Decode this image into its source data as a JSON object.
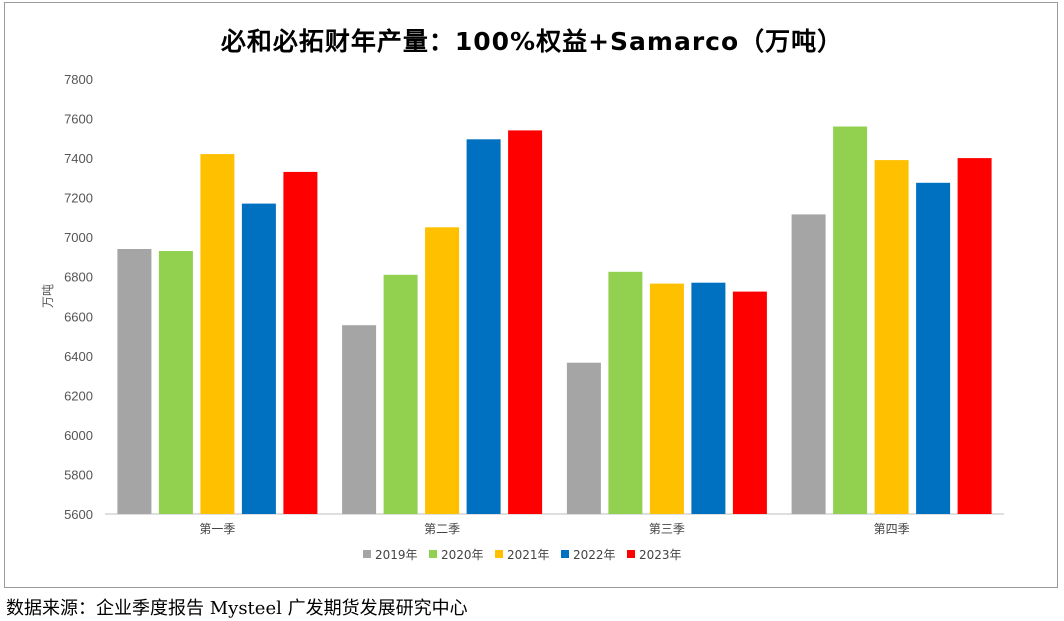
{
  "chart_data": {
    "type": "bar",
    "title": "必和必拓财年产量：100%权益+Samarco（万吨）",
    "ylabel": "万吨",
    "xlabel": "",
    "ylim": [
      5600,
      7800
    ],
    "ytick_step": 200,
    "grid": false,
    "legend_position": "bottom",
    "categories": [
      "第一季",
      "第二季",
      "第三季",
      "第四季"
    ],
    "series": [
      {
        "name": "2019年",
        "color": "#A5A5A5",
        "values": [
          6940,
          6555,
          6365,
          7115
        ]
      },
      {
        "name": "2020年",
        "color": "#92D050",
        "values": [
          6930,
          6810,
          6825,
          7560
        ]
      },
      {
        "name": "2021年",
        "color": "#FFC000",
        "values": [
          7420,
          7050,
          6765,
          7390
        ]
      },
      {
        "name": "2022年",
        "color": "#0070C0",
        "values": [
          7170,
          7495,
          6770,
          7275
        ]
      },
      {
        "name": "2023年",
        "color": "#FF0000",
        "values": [
          7330,
          7540,
          6725,
          7400
        ]
      }
    ]
  },
  "source_note": "数据来源：企业季度报告 Mysteel 广发期货发展研究中心"
}
